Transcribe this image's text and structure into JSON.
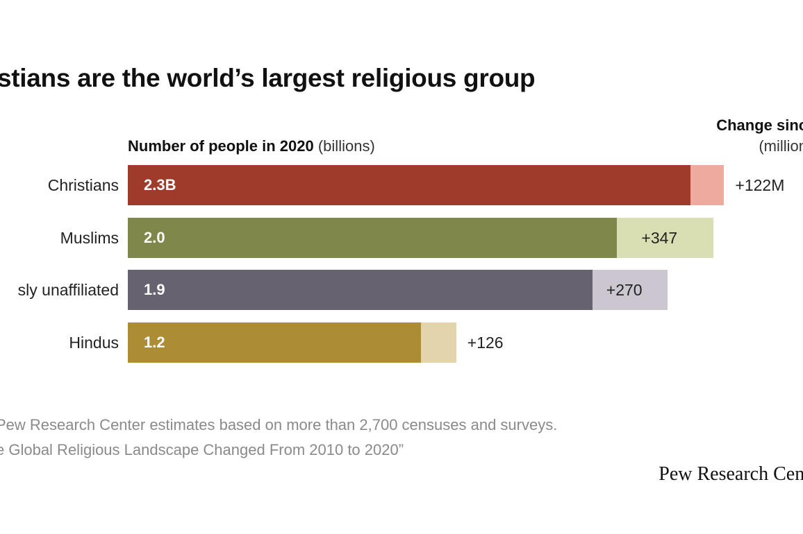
{
  "chart_data": {
    "type": "bar",
    "orientation": "horizontal",
    "title": "stians are the world’s largest religious group",
    "value_header": {
      "bold": "Number of people in 2020",
      "unit": "(billions)"
    },
    "change_header": {
      "bold": "Change sinc",
      "unit": "(million"
    },
    "categories": [
      "Christians",
      "Muslims",
      "sly unaffiliated",
      "Hindus"
    ],
    "series": [
      {
        "name": "Number of people in 2020",
        "values": [
          2.3,
          2.0,
          1.9,
          1.2
        ],
        "labels": [
          "2.3B",
          "2.0",
          "1.9",
          "1.2"
        ]
      },
      {
        "name": "Change sinc",
        "values": [
          122,
          347,
          270,
          126
        ],
        "labels": [
          "+122M",
          "+347",
          "+270",
          "+126"
        ]
      }
    ],
    "xlim_billions": [
      0,
      2.73
    ],
    "colors": {
      "main": [
        "#9e3b2b",
        "#7f874a",
        "#676270",
        "#ac8d36"
      ],
      "change": [
        "#eeaa9e",
        "#d9dfb3",
        "#cbc6cf",
        "#e3d4ac"
      ]
    }
  },
  "notes": [
    "Pew Research Center estimates based on more than 2,700 censuses and surveys.",
    "e Global Religious Landscape Changed From 2010 to 2020”"
  ],
  "brand": "Pew Research Cent"
}
